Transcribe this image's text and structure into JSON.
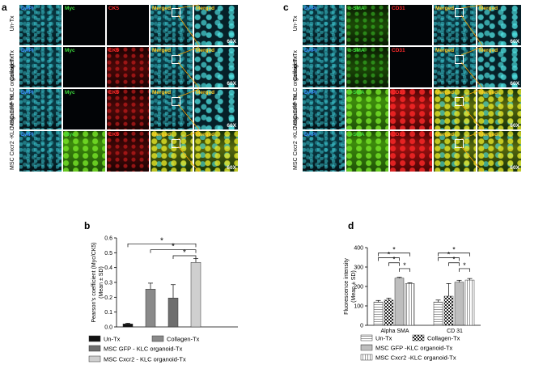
{
  "panel_a": {
    "letter": "a",
    "columns": [
      "DAPI",
      "Myc",
      "CK5",
      "Merged",
      "Merged"
    ],
    "column_colors": [
      "#3a8cff",
      "#3ddc3d",
      "#ff2a2a",
      "#ffcc22",
      "#ffcc22"
    ],
    "rows": [
      {
        "label": "Un-Tx"
      },
      {
        "label": "Collagen-Tx"
      },
      {
        "label": "MSC GFP -KLC organoid-Tx"
      },
      {
        "label": "MSC Cxcr2 -KLC organoid-Tx"
      }
    ],
    "magnification": "60X"
  },
  "panel_c": {
    "letter": "c",
    "columns": [
      "DAPI",
      "α-SMA",
      "CD31",
      "Merged",
      "Merged"
    ],
    "column_colors": [
      "#3a8cff",
      "#3ddc3d",
      "#ff2a2a",
      "#ffcc22",
      "#ffcc22"
    ],
    "rows": [
      {
        "label": "Un-Tx"
      },
      {
        "label": "Collagen-Tx"
      },
      {
        "label": "MSC GFP -KLC organoid-Tx"
      },
      {
        "label": "MSC Cxcr2 -KLC organoid-Tx"
      }
    ],
    "magnification": "60X"
  },
  "panel_b": {
    "letter": "b",
    "legend": [
      {
        "label": "Un-Tx",
        "color": "#111111"
      },
      {
        "label": "Collagen-Tx",
        "color": "#8a8a8a"
      },
      {
        "label": "MSC GFP - KLC organoid-Tx",
        "color": "#6e6e6e"
      },
      {
        "label": "MSC Cxcr2 - KLC organoid-Tx",
        "color": "#cfcfcf"
      }
    ]
  },
  "panel_d": {
    "letter": "d",
    "legend": [
      {
        "label": "Un-Tx",
        "pattern": "hlines"
      },
      {
        "label": "Collagen-Tx",
        "pattern": "checker"
      },
      {
        "label": "MSC GFP -KLC organoid-Tx",
        "pattern": "hlines-dense"
      },
      {
        "label": "MSC Cxcr2 -KLC organoid-Tx",
        "pattern": "vlines"
      }
    ]
  },
  "chart_data": [
    {
      "type": "bar",
      "ylabel": "Pearson's coefficient (Myc/CK5) (Mean ± SD)",
      "categories": [
        "Un-Tx",
        "Collagen-Tx",
        "MSC GFP - KLC organoid-Tx",
        "MSC Cxcr2 - KLC organoid-Tx"
      ],
      "values": [
        0.02,
        0.255,
        0.195,
        0.435
      ],
      "errors": [
        0.005,
        0.04,
        0.09,
        0.025
      ],
      "ylim": [
        0,
        0.6
      ],
      "yticks": [
        "0.0",
        "0.1",
        "0.2",
        "0.3",
        "0.4",
        "0.5",
        "0.6"
      ],
      "significance": [
        "*",
        "*",
        "*"
      ],
      "colors": [
        "#111111",
        "#8a8a8a",
        "#6e6e6e",
        "#cfcfcf"
      ]
    },
    {
      "type": "bar",
      "ylabel": "Fluorescence intensity (Mean ± SD)",
      "categories": [
        "Alpha SMA",
        "CD 31"
      ],
      "series": [
        {
          "name": "Un-Tx",
          "values": [
            120,
            120
          ],
          "errors": [
            8,
            10
          ]
        },
        {
          "name": "Collagen-Tx",
          "values": [
            130,
            150
          ],
          "errors": [
            10,
            65
          ]
        },
        {
          "name": "MSC GFP -KLC organoid-Tx",
          "values": [
            243,
            222
          ],
          "errors": [
            4,
            10
          ]
        },
        {
          "name": "MSC Cxcr2 -KLC organoid-Tx",
          "values": [
            215,
            233
          ],
          "errors": [
            4,
            8
          ]
        }
      ],
      "ylim": [
        0,
        400
      ],
      "yticks": [
        "0",
        "100",
        "200",
        "300",
        "400"
      ],
      "significance": [
        "*",
        "*",
        "*",
        "*",
        "*",
        "*",
        "*",
        "*"
      ]
    }
  ]
}
